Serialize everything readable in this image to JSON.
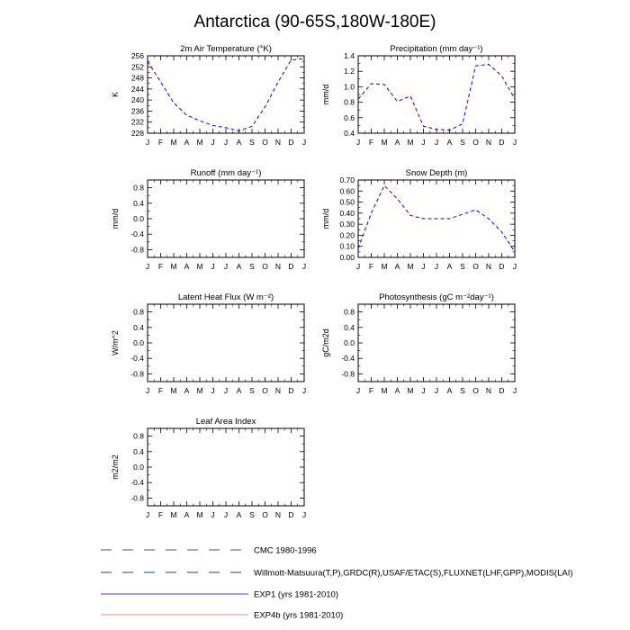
{
  "figure": {
    "title": "Antarctica (90-65S,180W-180E)"
  },
  "months": [
    "J",
    "F",
    "M",
    "A",
    "M",
    "J",
    "J",
    "A",
    "S",
    "O",
    "N",
    "D",
    "J"
  ],
  "chart_data": [
    {
      "type": "line",
      "title": "2m Air Temperature (°K)",
      "ylabel": "K",
      "ylim": [
        228,
        256
      ],
      "yticks": [
        228,
        232,
        236,
        240,
        244,
        248,
        252,
        256
      ],
      "ytick_labels": [
        "228",
        "232",
        "236",
        "240",
        "244",
        "248",
        "252",
        "256"
      ],
      "series": [
        {
          "style": "dashed-blue",
          "values": [
            254.0,
            246.5,
            239.0,
            234.5,
            232.5,
            230.8,
            230.0,
            228.8,
            230.5,
            237.5,
            246.5,
            254.5,
            255.0
          ]
        }
      ]
    },
    {
      "type": "line",
      "title": "Precipitation (mm day⁻¹)",
      "ylabel": "mm/d",
      "ylim": [
        0.4,
        1.4
      ],
      "yticks": [
        0.4,
        0.6,
        0.8,
        1.0,
        1.2,
        1.4
      ],
      "ytick_labels": [
        "0.4",
        "0.6",
        "0.8",
        "1.0",
        "1.2",
        "1.4"
      ],
      "series": [
        {
          "style": "dashed-blue",
          "values": [
            0.84,
            1.04,
            1.03,
            0.81,
            0.88,
            0.49,
            0.45,
            0.44,
            0.52,
            1.27,
            1.29,
            1.14,
            0.84
          ]
        }
      ]
    },
    {
      "type": "line",
      "title": "Runoff (mm day⁻¹)",
      "ylabel": "mm/d",
      "ylim": [
        -1.0,
        1.0
      ],
      "yticks": [
        -0.8,
        -0.4,
        0.0,
        0.4,
        0.8
      ],
      "ytick_labels": [
        "-0.8",
        "-0.4",
        "0.0",
        "0.4",
        "0.8"
      ],
      "series": []
    },
    {
      "type": "line",
      "title": "Snow Depth (m)",
      "ylabel": "mm/d",
      "ylim": [
        0.0,
        0.7
      ],
      "yticks": [
        0.0,
        0.1,
        0.2,
        0.3,
        0.4,
        0.5,
        0.6,
        0.7
      ],
      "ytick_labels": [
        "0.00",
        "0.10",
        "0.20",
        "0.30",
        "0.40",
        "0.50",
        "0.60",
        "0.70"
      ],
      "series": [
        {
          "style": "dashed-blue",
          "values": [
            0.08,
            0.4,
            0.65,
            0.53,
            0.38,
            0.35,
            0.35,
            0.35,
            0.39,
            0.43,
            0.35,
            0.23,
            0.05
          ]
        }
      ]
    },
    {
      "type": "line",
      "title": "Latent Heat Flux (W m⁻²)",
      "ylabel": "W/m^2",
      "ylim": [
        -1.0,
        1.0
      ],
      "yticks": [
        -0.8,
        -0.4,
        0.0,
        0.4,
        0.8
      ],
      "ytick_labels": [
        "-0.8",
        "-0.4",
        "0.0",
        "0.4",
        "0.8"
      ],
      "series": []
    },
    {
      "type": "line",
      "title": "Photosynthesis (gC m⁻²day⁻¹)",
      "ylabel": "gC/m2d",
      "ylim": [
        -1.0,
        1.0
      ],
      "yticks": [
        -0.8,
        -0.4,
        0.0,
        0.4,
        0.8
      ],
      "ytick_labels": [
        "-0.8",
        "-0.4",
        "0.0",
        "0.4",
        "0.8"
      ],
      "series": []
    },
    {
      "type": "line",
      "title": "Leaf Area Index",
      "ylabel": "m2/m2",
      "ylim": [
        -1.0,
        1.0
      ],
      "yticks": [
        -0.8,
        -0.4,
        0.0,
        0.4,
        0.8
      ],
      "ytick_labels": [
        "-0.8",
        "-0.4",
        "0.0",
        "0.4",
        "0.8"
      ],
      "series": []
    }
  ],
  "legend": [
    {
      "label": "CMC 1980-1996",
      "color": "#555555",
      "dash": "12 12"
    },
    {
      "label": "Willmott-Matsuura(T,P),GRDC(R),USAF/ETAC(S),FLUXNET(LHF,GPP),MODIS(LAI)",
      "color": "#1f3fa8",
      "dash": "12 12"
    },
    {
      "label": "EXP1 (yrs 1981-2010)",
      "color": "#4a4acc",
      "dash": ""
    },
    {
      "label": "EXP4b (yrs 1981-2010)",
      "color": "#ff8888",
      "dash": ""
    }
  ],
  "colors": {
    "series_blue": "#0000ff",
    "axis": "#000000"
  }
}
